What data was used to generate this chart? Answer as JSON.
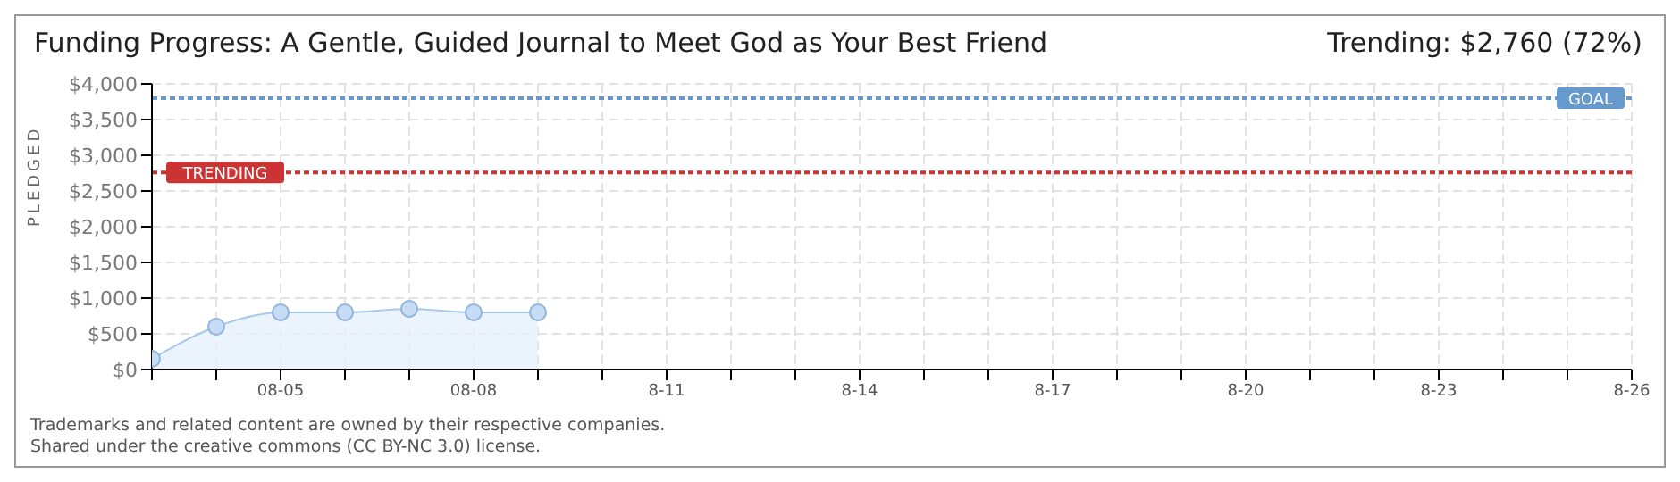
{
  "chart_data": {
    "type": "area",
    "title": "Funding Progress: A Gentle, Guided Journal to Meet God as Your Best Friend",
    "subtitle": "Trending: $2,760 (72%)",
    "ylabel": "PLEDGED",
    "x": [
      "--08-03",
      "--08-04",
      "--08-05",
      "--08-06",
      "--08-07",
      "--08-08",
      "--08-09"
    ],
    "series": [
      {
        "color": "#a8c8ec",
        "values": [
          150,
          600,
          800,
          800,
          850,
          800,
          800
        ]
      }
    ],
    "marker": "circle",
    "grid": true,
    "legend": false,
    "xlim": [
      "--08-03",
      "--08-26"
    ],
    "xticks": [
      {
        "value": "--08-03",
        "label": null
      },
      {
        "value": "--08-04",
        "label": null
      },
      {
        "value": "--08-05",
        "label": "08-05"
      },
      {
        "value": "--08-06",
        "label": null
      },
      {
        "value": "--08-07",
        "label": null
      },
      {
        "value": "--08-08",
        "label": "08-08"
      },
      {
        "value": "--08-09",
        "label": null
      },
      {
        "value": "--08-10",
        "label": null
      },
      {
        "value": "--08-11",
        "label": "8-11"
      },
      {
        "value": "--08-12",
        "label": null
      },
      {
        "value": "--08-13",
        "label": null
      },
      {
        "value": "--08-14",
        "label": "8-14"
      },
      {
        "value": "--08-15",
        "label": null
      },
      {
        "value": "--08-16",
        "label": null
      },
      {
        "value": "--08-17",
        "label": "8-17"
      },
      {
        "value": "--08-18",
        "label": null
      },
      {
        "value": "--08-19",
        "label": null
      },
      {
        "value": "--08-20",
        "label": "8-20"
      },
      {
        "value": "--08-21",
        "label": null
      },
      {
        "value": "--08-22",
        "label": null
      },
      {
        "value": "--08-23",
        "label": "8-23"
      },
      {
        "value": "--08-24",
        "label": null
      },
      {
        "value": "--08-25",
        "label": null
      },
      {
        "value": "--08-26",
        "label": "8-26"
      }
    ],
    "ylim": [
      0,
      4000
    ],
    "yticks": [
      {
        "value": 0,
        "label": "$0"
      },
      {
        "value": 500,
        "label": "$500"
      },
      {
        "value": 1000,
        "label": "$1,000"
      },
      {
        "value": 1500,
        "label": "$1,500"
      },
      {
        "value": 2000,
        "label": "$2,000"
      },
      {
        "value": 2500,
        "label": "$2,500"
      },
      {
        "value": 3000,
        "label": "$3,000"
      },
      {
        "value": 3500,
        "label": "$3,500"
      },
      {
        "value": 4000,
        "label": "$4,000"
      }
    ],
    "ref_lines": [
      {
        "axis": "y",
        "value": 3800,
        "label": "GOAL",
        "color": "#6699cc",
        "line_style": "dotted"
      },
      {
        "axis": "y",
        "value": 2760,
        "label": "TRENDING",
        "color": "#cc3333",
        "line_style": "dotted"
      }
    ],
    "annotations": [
      "Trademarks and related content are owned by their respective companies.",
      "Shared under the creative commons (CC BY-NC 3.0) license."
    ]
  }
}
